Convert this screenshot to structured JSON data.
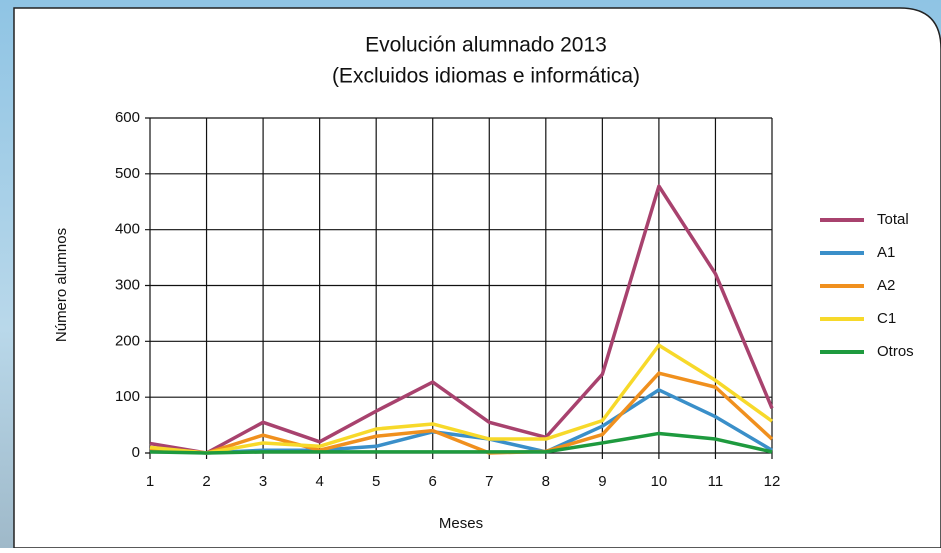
{
  "chart_data": {
    "type": "line",
    "title": "Evolución alumnado 2013",
    "subtitle": "(Excluidos idiomas e informática)",
    "x_label": "Meses",
    "y_label": "Número alumnos",
    "x": [
      1,
      2,
      3,
      4,
      5,
      6,
      7,
      8,
      9,
      10,
      11,
      12
    ],
    "xlim": [
      1,
      12
    ],
    "xticks": [
      1,
      2,
      3,
      4,
      5,
      6,
      7,
      8,
      9,
      10,
      11,
      12
    ],
    "ylim": [
      0,
      600
    ],
    "yticks": [
      0,
      100,
      200,
      300,
      400,
      500,
      600
    ],
    "grid": true,
    "legend": "right",
    "series": [
      {
        "name": "Total",
        "color": "#a8426e",
        "values": [
          17,
          0,
          55,
          20,
          75,
          127,
          55,
          28,
          141,
          478,
          321,
          80
        ]
      },
      {
        "name": "A1",
        "color": "#3a8fc9",
        "values": [
          5,
          0,
          5,
          5,
          12,
          38,
          25,
          2,
          48,
          113,
          65,
          5
        ]
      },
      {
        "name": "A2",
        "color": "#f0901e",
        "values": [
          8,
          0,
          32,
          5,
          30,
          40,
          0,
          3,
          33,
          143,
          118,
          25
        ]
      },
      {
        "name": "C1",
        "color": "#f7d92a",
        "values": [
          10,
          0,
          18,
          12,
          43,
          52,
          25,
          25,
          58,
          193,
          130,
          57
        ]
      },
      {
        "name": "Otros",
        "color": "#1e9a3e",
        "values": [
          2,
          0,
          2,
          2,
          2,
          2,
          2,
          2,
          18,
          35,
          25,
          2
        ]
      }
    ]
  }
}
